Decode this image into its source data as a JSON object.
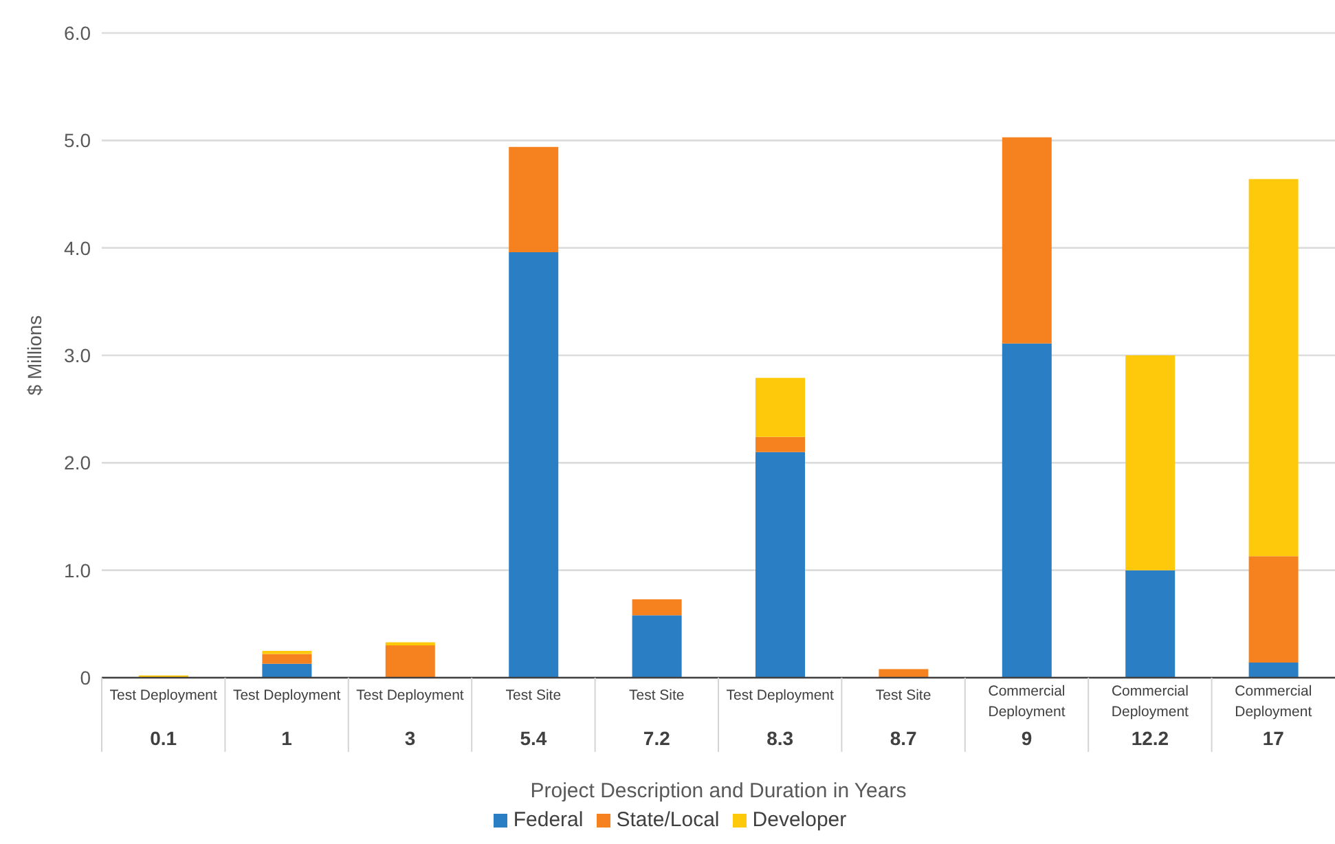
{
  "chart_data": {
    "type": "bar",
    "stacked": true,
    "ylabel": "$ Millions",
    "xlabel": "Project Description and Duration in Years",
    "categories": [
      "Test Deployment\n0.1",
      "Test Deployment\n1",
      "Test Deployment\n3",
      "Test Site\n5.4",
      "Test Site\n7.2",
      "Test Deployment\n8.3",
      "Test Site\n8.7",
      "Commercial Deployment\n9",
      "Commercial Deployment\n12.2",
      "Commercial Deployment\n17"
    ],
    "series": [
      {
        "name": "Federal",
        "color": "#2a7ec3",
        "values": [
          0,
          0.13,
          0,
          3.96,
          0.58,
          2.1,
          0,
          3.11,
          1.0,
          0.14
        ]
      },
      {
        "name": "State/Local",
        "color": "#f5821f",
        "values": [
          0,
          0.09,
          0.3,
          0.98,
          0.15,
          0.14,
          0.08,
          1.92,
          0,
          0.99
        ]
      },
      {
        "name": "Developer",
        "color": "#fec90b",
        "values": [
          0.02,
          0.03,
          0.03,
          0,
          0,
          0.55,
          0,
          0,
          2.0,
          3.51
        ]
      }
    ],
    "ylim": [
      0,
      6
    ],
    "yticks": [
      0,
      {
        "value": 1,
        "label": "1.0"
      },
      {
        "value": 2,
        "label": "2.0"
      },
      {
        "value": 3,
        "label": "3.0"
      },
      {
        "value": 4,
        "label": "4.0"
      },
      {
        "value": 5,
        "label": "5.0"
      },
      {
        "value": 6,
        "label": "6.0"
      }
    ],
    "grid": "y",
    "legend": "bottom"
  }
}
